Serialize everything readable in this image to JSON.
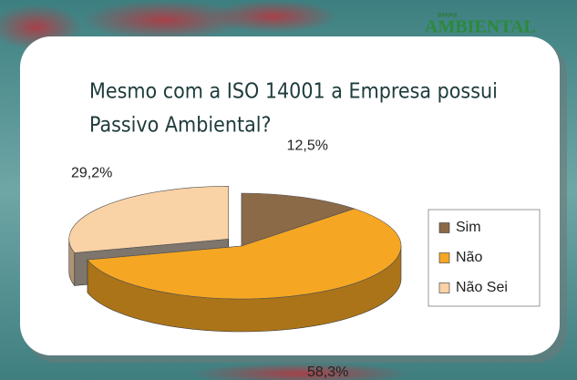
{
  "logo": {
    "small": "BANAS",
    "main": "AMBIENTAL"
  },
  "chart_data": {
    "type": "pie",
    "title": [
      "Mesmo com a ISO 14001 a Empresa possui",
      "Passivo Ambiental?"
    ],
    "categories": [
      "Sim",
      "Não",
      "Não Sei"
    ],
    "values": [
      12.5,
      58.3,
      29.2
    ],
    "value_labels": [
      "12,5%",
      "58,3%",
      "29,2%"
    ],
    "colors": [
      "#8b6a48",
      "#f5a623",
      "#f9d2a6"
    ],
    "exploded": [
      false,
      false,
      true
    ],
    "three_d": true,
    "legend": "right"
  }
}
